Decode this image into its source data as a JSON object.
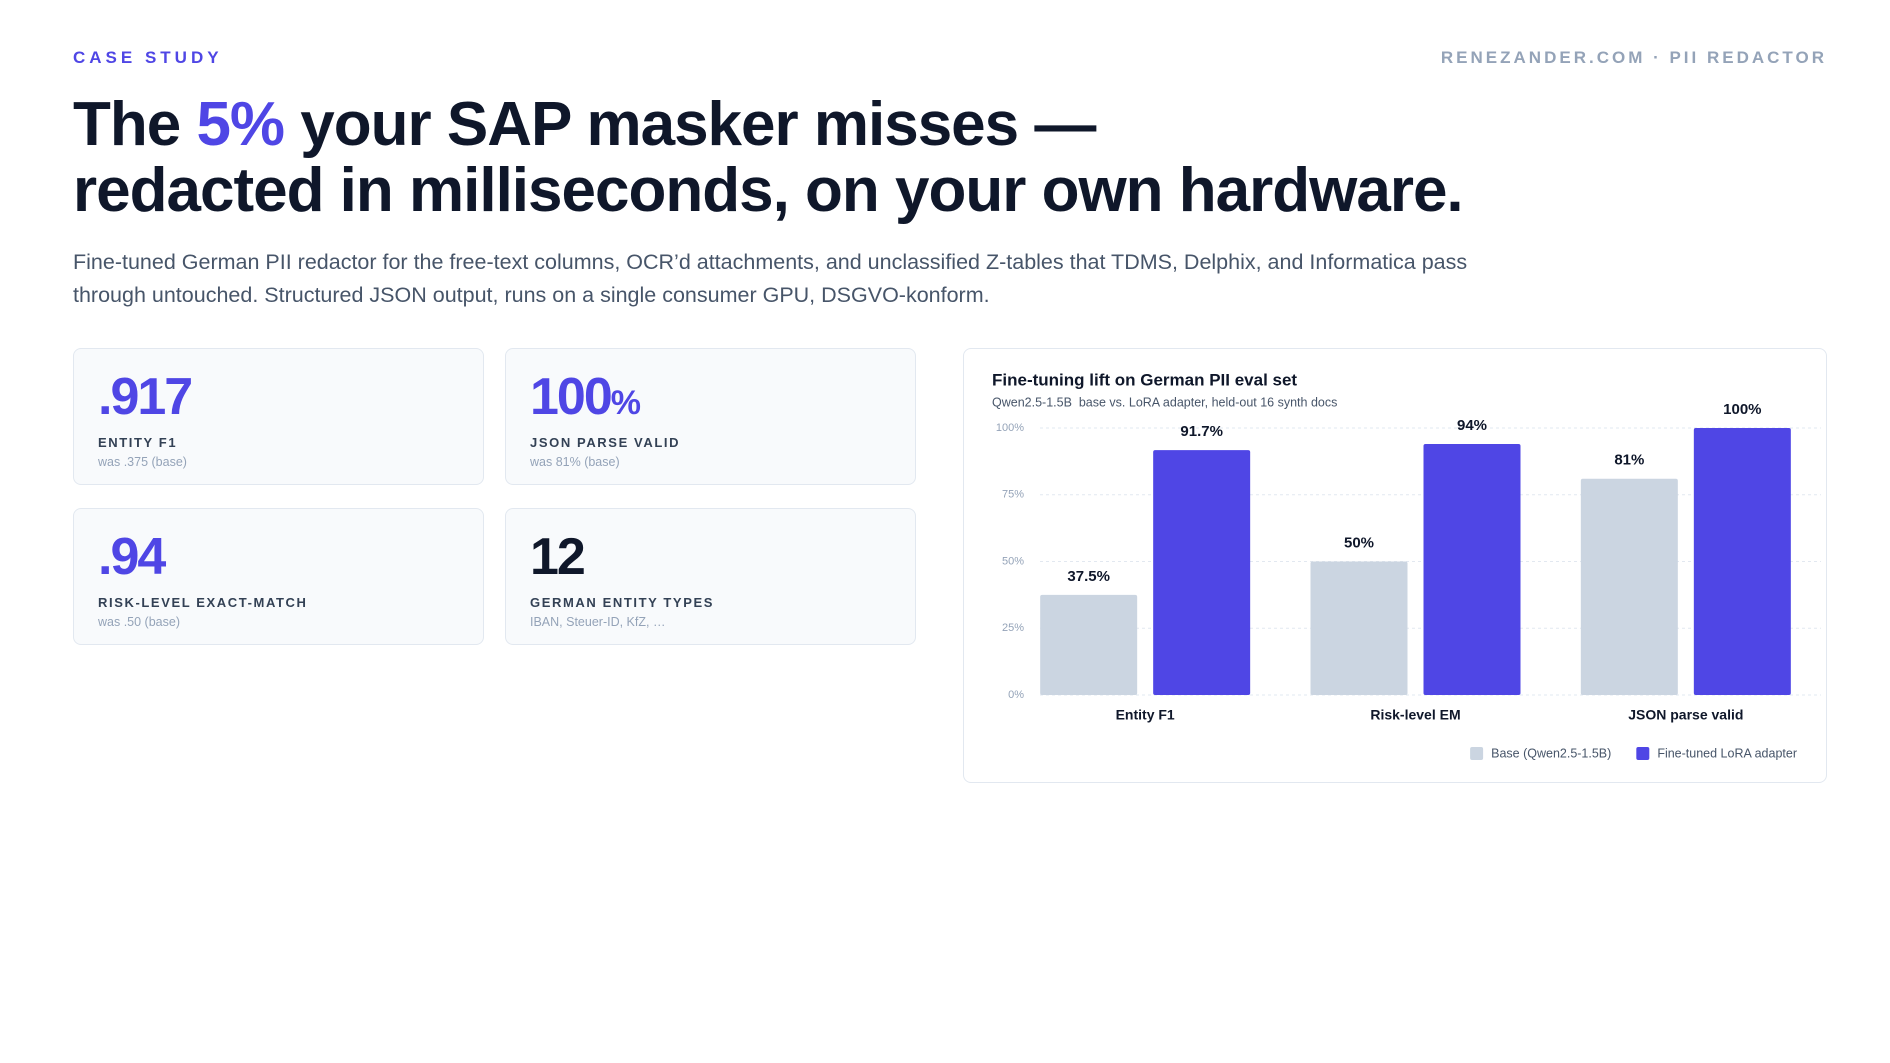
{
  "header": {
    "eyebrow": "CASE STUDY",
    "site": "RENEZANDER.COM · PII REDACTOR"
  },
  "headline": {
    "parts": [
      "The ",
      "5%",
      " your SAP masker misses —",
      "redacted in milliseconds, on your own hardware."
    ],
    "accent_color": "#4f46e5"
  },
  "intro": "Fine-tuned German PII redactor for the free-text columns, OCR’d attachments, and unclassified Z-tables that TDMS, Delphix, and Informatica pass through untouched. Structured JSON output, runs on a single consumer GPU, DSGVO-konform.",
  "cards": [
    {
      "value": ".917",
      "unit": null,
      "label": "ENTITY F1",
      "note": "was .375 (base)",
      "color": "#4f46e5"
    },
    {
      "value": "100",
      "unit": "%",
      "label": "JSON PARSE VALID",
      "note": "was 81% (base)",
      "color": "#4f46e5"
    },
    {
      "value": ".94",
      "unit": null,
      "label": "RISK-LEVEL EXACT-MATCH",
      "note": "was .50 (base)",
      "color": "#4f46e5"
    },
    {
      "value": "12",
      "unit": null,
      "label": "GERMAN ENTITY TYPES",
      "note": "IBAN, Steuer-ID, KfZ, …",
      "color": "#0f172a"
    }
  ],
  "chart_data": {
    "type": "bar",
    "title": "Fine-tuning lift on German PII eval set",
    "subtitle": "Qwen2.5-1.5B  base vs. LoRA adapter, held-out 16 synth docs",
    "categories": [
      "Entity F1",
      "Risk-level EM",
      "JSON parse valid"
    ],
    "series": [
      {
        "name": "Base (Qwen2.5-1.5B)",
        "color": "#cbd5e1",
        "values": [
          37.5,
          50,
          81
        ],
        "value_labels": [
          "37.5%",
          "50%",
          "81%"
        ]
      },
      {
        "name": "Fine-tuned LoRA adapter",
        "color": "#4f46e5",
        "values": [
          91.7,
          94,
          100
        ],
        "value_labels": [
          "91.7%",
          "94%",
          "100%"
        ]
      }
    ],
    "ylim": [
      0,
      100
    ],
    "yticks": [
      {
        "value": 0,
        "label": "0%"
      },
      {
        "value": 25,
        "label": "25%"
      },
      {
        "value": 50,
        "label": "50%"
      },
      {
        "value": 75,
        "label": "75%"
      },
      {
        "value": 100,
        "label": "100%"
      }
    ],
    "grid": true,
    "legend": "bottom-right"
  }
}
